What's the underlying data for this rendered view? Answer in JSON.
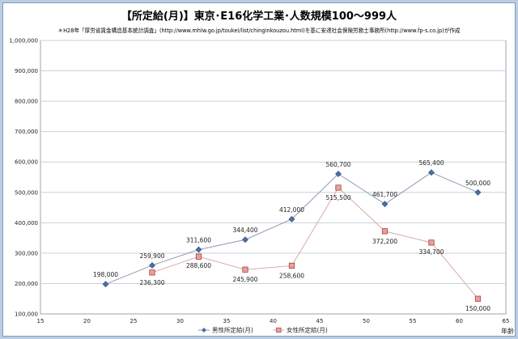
{
  "chart_data": {
    "type": "line",
    "title": "【所定給(月)】東京･E16化学工業･人数規模100～999人",
    "subtitle": "＊H28年「厚労省賃金構造基本統計調査」(http://www.mhlw.go.jp/toukei/list/chinginkouzou.html)を基に安達社会保険労務士事務所(http://www.fp-s.co.jp)が作成",
    "xlabel": "年齢",
    "ylabel": "",
    "xlim": [
      15,
      65
    ],
    "ylim": [
      100000,
      1000000
    ],
    "x_ticks": [
      15,
      20,
      25,
      30,
      35,
      40,
      45,
      50,
      55,
      60,
      65
    ],
    "y_ticks": [
      100000,
      200000,
      300000,
      400000,
      500000,
      600000,
      700000,
      800000,
      900000,
      1000000
    ],
    "x_tick_labels": [
      "15",
      "20",
      "25",
      "30",
      "35",
      "40",
      "45",
      "50",
      "55",
      "60",
      "65"
    ],
    "y_tick_labels": [
      "100,000",
      "200,000",
      "300,000",
      "400,000",
      "500,000",
      "600,000",
      "700,000",
      "800,000",
      "900,000",
      "1,000,000"
    ],
    "grid": true,
    "legend_position": "bottom",
    "series": [
      {
        "name": "男性所定給(月)",
        "color": "#4a6fa5",
        "marker": "diamond",
        "x": [
          22,
          27,
          32,
          37,
          42,
          47,
          52,
          57,
          62
        ],
        "y": [
          198000,
          259900,
          311600,
          344400,
          412000,
          560700,
          461700,
          565400,
          500000
        ],
        "labels": [
          "198,000",
          "259,900",
          "311,600",
          "344,400",
          "412,000",
          "560,700",
          "461,700",
          "565,400",
          "500,000"
        ]
      },
      {
        "name": "女性所定給(月)",
        "color": "#c0504d",
        "marker": "square",
        "x": [
          27,
          32,
          37,
          42,
          47,
          52,
          57,
          62
        ],
        "y": [
          236300,
          288600,
          245900,
          258600,
          515500,
          372200,
          334700,
          150000
        ],
        "labels": [
          "236,300",
          "288,600",
          "245,900",
          "258,600",
          "515,500",
          "372,200",
          "334,700",
          "150,000"
        ]
      }
    ]
  }
}
